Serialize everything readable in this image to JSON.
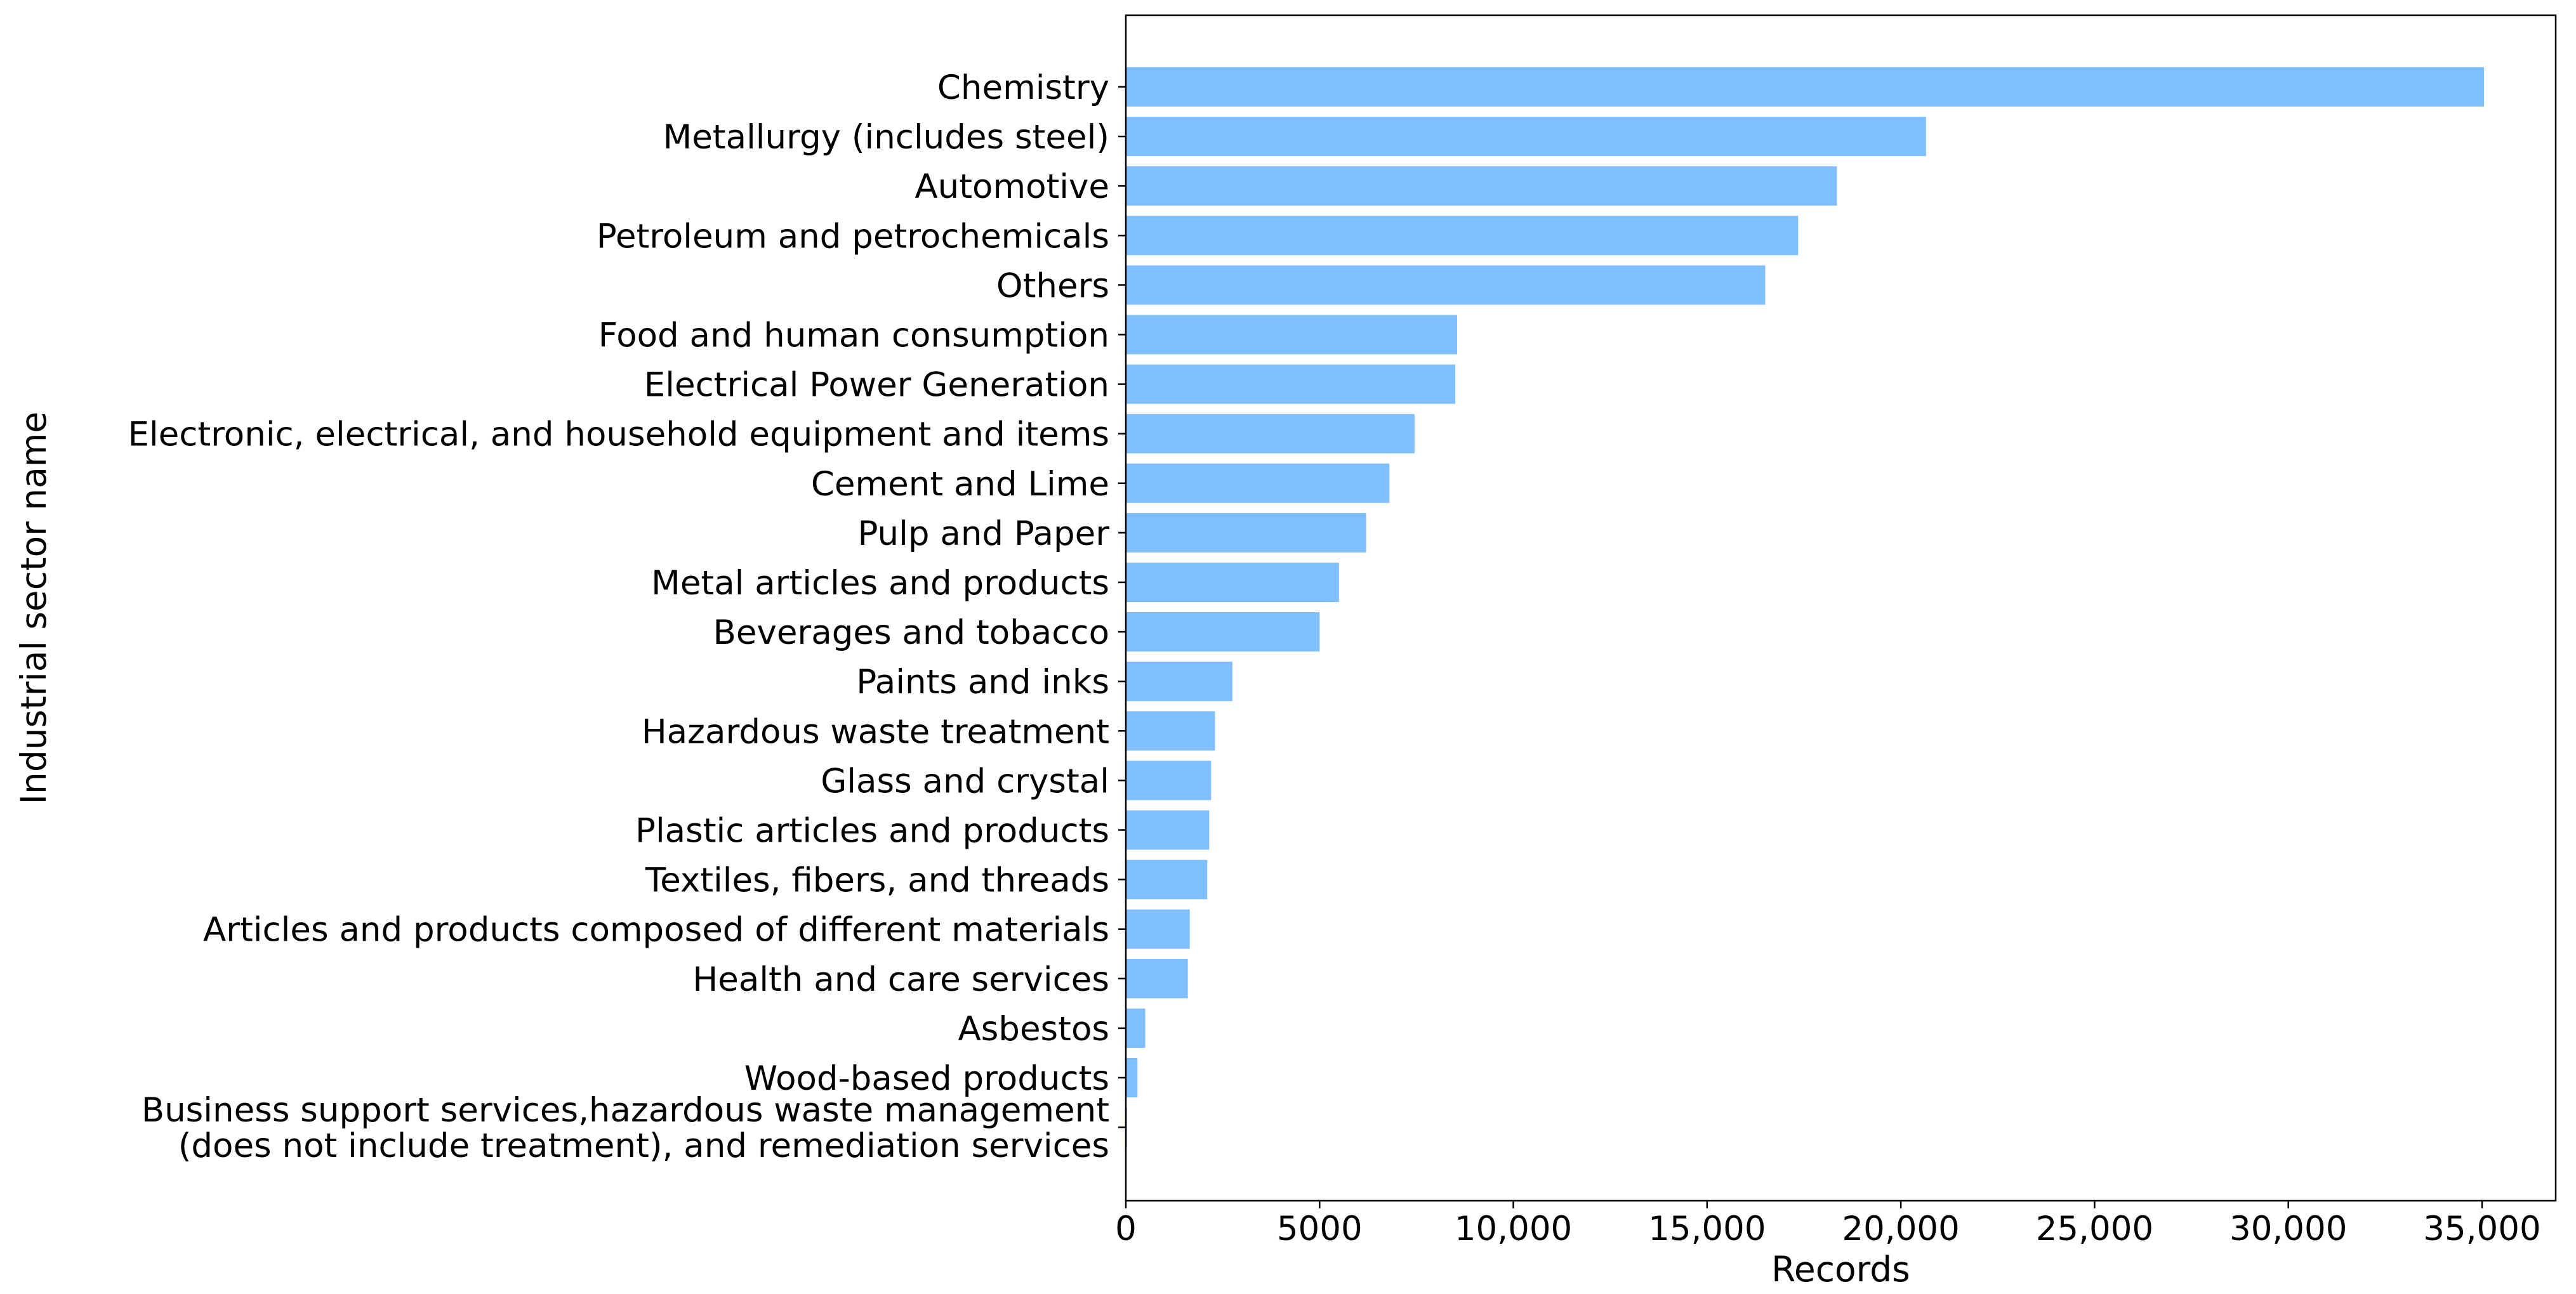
{
  "colors": {
    "bar": "#80bfff",
    "axis": "#000000",
    "background": "#ffffff"
  },
  "chart_data": {
    "type": "bar",
    "orientation": "horizontal",
    "xlabel": "Records",
    "ylabel": "Industrial sector name",
    "xlim": [
      0,
      36900
    ],
    "xticks": [
      0,
      5000,
      10000,
      15000,
      20000,
      25000,
      30000,
      35000
    ],
    "xtick_labels": [
      "0",
      "5000",
      "10,000",
      "15,000",
      "20,000",
      "25,000",
      "30,000",
      "35,000"
    ],
    "grid": false,
    "legend": "none",
    "categories": [
      "Chemistry",
      "Metallurgy (includes steel)",
      "Automotive",
      "Petroleum and petrochemicals",
      "Others",
      "Food and human consumption",
      "Electrical Power Generation",
      "Electronic, electrical, and household equipment and items",
      "Cement and Lime",
      "Pulp and Paper",
      "Metal articles and products",
      "Beverages and tobacco",
      "Paints and inks",
      "Hazardous waste treatment",
      "Glass and crystal",
      "Plastic articles and products",
      "Textiles, fibers, and threads",
      "Articles and products composed of different materials",
      "Health and care services",
      "Asbestos",
      "Wood-based products",
      "Business support services,hazardous waste management\n(does not include treatment), and remediation services"
    ],
    "values": [
      35050,
      20650,
      18350,
      17350,
      16500,
      8550,
      8500,
      7450,
      6800,
      6200,
      5500,
      5000,
      2750,
      2300,
      2200,
      2150,
      2100,
      1650,
      1600,
      500,
      300,
      30
    ]
  }
}
